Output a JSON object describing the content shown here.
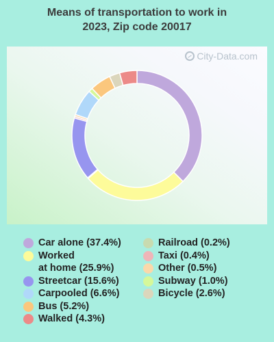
{
  "title": {
    "line1": "Means of transportation to work in",
    "line2": "2023, Zip code 20017"
  },
  "watermark": {
    "text": "City-Data.com",
    "icon": "magnifier-icon"
  },
  "chart_data": {
    "type": "pie",
    "donut": true,
    "title": "Means of transportation to work in 2023, Zip code 20017",
    "legend_placement": "bottom",
    "slices": [
      {
        "label": "Car alone",
        "value": 37.4,
        "color": "#bfa8dc",
        "legend": "Car alone (37.4%)"
      },
      {
        "label": "Worked at home",
        "value": 25.9,
        "color": "#fdfb9a",
        "legend": "Worked\nat home (25.9%)"
      },
      {
        "label": "Railroad",
        "value": 0.2,
        "color": "#c8dbb0",
        "legend": "Railroad (0.2%)"
      },
      {
        "label": "Streetcar",
        "value": 15.6,
        "color": "#9795ef",
        "legend": "Streetcar (15.6%)"
      },
      {
        "label": "Taxi",
        "value": 0.4,
        "color": "#efb5b8",
        "legend": "Taxi (0.4%)"
      },
      {
        "label": "Other",
        "value": 0.5,
        "color": "#fbd8aa",
        "legend": "Other (0.5%)"
      },
      {
        "label": "Carpooled",
        "value": 6.6,
        "color": "#b0d8fa",
        "legend": "Carpooled (6.6%)"
      },
      {
        "label": "Subway",
        "value": 1.0,
        "color": "#d6f89a",
        "legend": "Subway (1.0%)"
      },
      {
        "label": "Bus",
        "value": 5.2,
        "color": "#fbc77d",
        "legend": "Bus (5.2%)"
      },
      {
        "label": "Bicycle",
        "value": 2.6,
        "color": "#dbd6bc",
        "legend": "Bicycle (2.6%)"
      },
      {
        "label": "Walked",
        "value": 4.3,
        "color": "#ec8a88",
        "legend": "Walked (4.3%)"
      }
    ],
    "legend_columns": {
      "left": [
        "Car alone",
        "Worked at home",
        "Streetcar",
        "Carpooled",
        "Bus",
        "Walked"
      ],
      "right": [
        "Railroad",
        "Taxi",
        "Other",
        "Subway",
        "Bicycle"
      ]
    }
  }
}
